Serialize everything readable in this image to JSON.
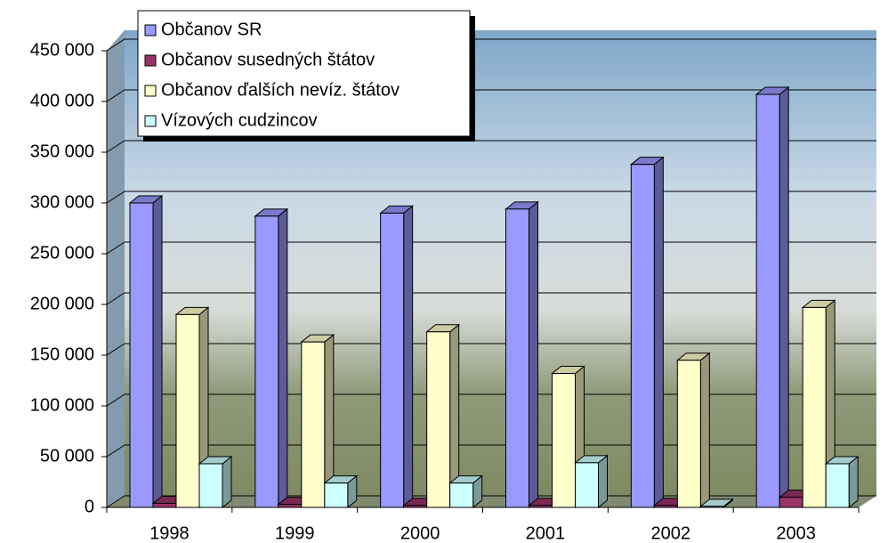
{
  "chart_data": {
    "type": "bar3d",
    "categories": [
      "1998",
      "1999",
      "2000",
      "2001",
      "2002",
      "2003"
    ],
    "series": [
      {
        "name": "Občanov SR",
        "color": "#9999ff",
        "values": [
          300000,
          287000,
          290000,
          294000,
          338000,
          407000
        ]
      },
      {
        "name": "Občanov susedných štátov",
        "color": "#993366",
        "values": [
          4000,
          3000,
          2000,
          2000,
          2000,
          10000
        ]
      },
      {
        "name": "Občanov ďalších nevíz. štátov",
        "color": "#ffffcc",
        "values": [
          190000,
          163000,
          173000,
          132000,
          145000,
          197000
        ]
      },
      {
        "name": "Vízových cudzincov",
        "color": "#ccffff",
        "values": [
          43000,
          24000,
          24000,
          44000,
          1000,
          43000
        ]
      }
    ],
    "ylim": [
      0,
      450000
    ],
    "yticks": [
      0,
      {
        "value": 50000,
        "label": "50 000"
      },
      {
        "value": 100000,
        "label": "100 000"
      },
      {
        "value": 150000,
        "label": "150 000"
      },
      {
        "value": 200000,
        "label": "200 000"
      },
      {
        "value": 250000,
        "label": "250 000"
      },
      {
        "value": 300000,
        "label": "300 000"
      },
      {
        "value": 350000,
        "label": "350 000"
      },
      {
        "value": 400000,
        "label": "400 000"
      },
      {
        "value": 450000,
        "label": "450 000"
      }
    ],
    "grid": true
  }
}
